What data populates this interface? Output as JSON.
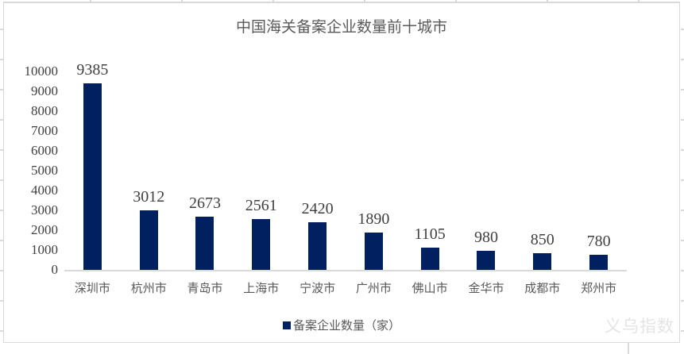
{
  "chart_data": {
    "type": "bar",
    "title": "中国海关备案企业数量前十城市",
    "categories": [
      "深圳市",
      "杭州市",
      "青岛市",
      "上海市",
      "宁波市",
      "广州市",
      "佛山市",
      "金华市",
      "成都市",
      "郑州市"
    ],
    "values": [
      9385,
      3012,
      2673,
      2561,
      2420,
      1890,
      1105,
      980,
      850,
      780
    ],
    "legend": "备案企业数量（家）",
    "legend_position": "bottom-center",
    "xlabel": "",
    "ylabel": "",
    "ylim": [
      0,
      10000
    ],
    "yticks": [
      0,
      1000,
      2000,
      3000,
      4000,
      5000,
      6000,
      7000,
      8000,
      9000,
      10000
    ],
    "grid": false,
    "data_labels": true,
    "bar_color": "#002060",
    "axis_line_color": "#d9d9d9",
    "number_color": "#404040",
    "text_color": "#595959"
  },
  "watermark": "义乌指数"
}
